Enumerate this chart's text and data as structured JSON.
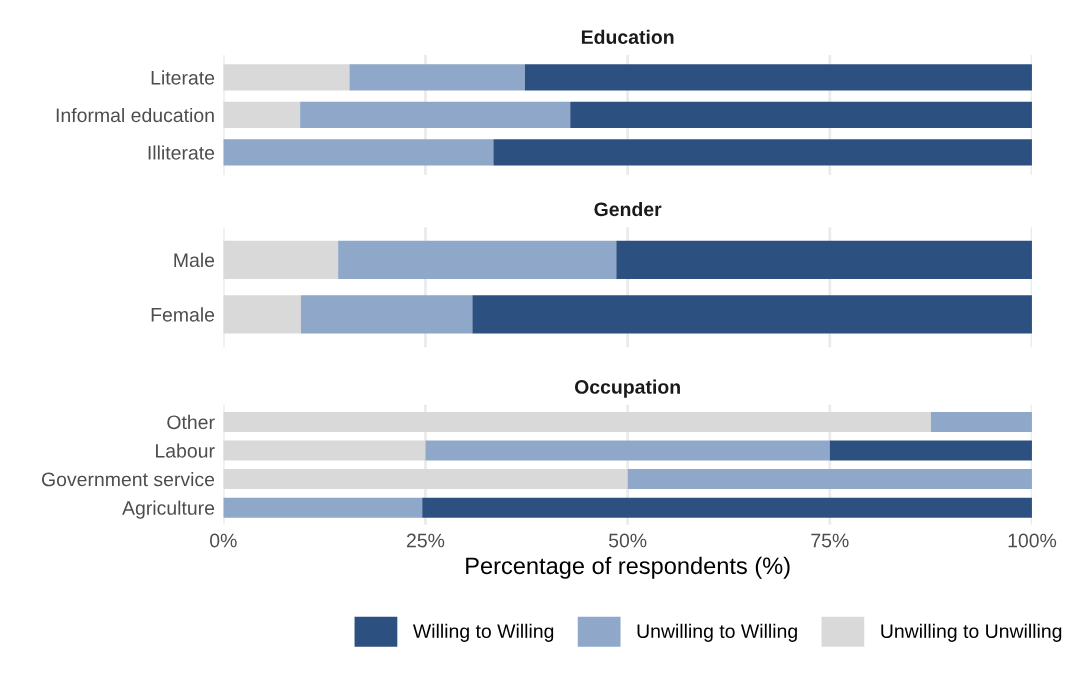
{
  "chart_data": [
    {
      "type": "bar",
      "orientation": "horizontal",
      "stacked": true,
      "title": "Education",
      "categories": [
        "Literate",
        "Informal education",
        "Illiterate"
      ],
      "series": [
        {
          "color": "#d9d9d9",
          "values": [
            15.6,
            9.5,
            0
          ]
        },
        {
          "color": "#8fa7c9",
          "values": [
            21.7,
            33.4,
            33.4
          ]
        },
        {
          "color": "#2c5080",
          "values": [
            62.7,
            57.1,
            66.6
          ]
        }
      ],
      "xlim": [
        0,
        100
      ],
      "xticks": [
        {
          "value": 0,
          "label": null
        },
        {
          "value": 25,
          "label": null
        },
        {
          "value": 50,
          "label": null
        },
        {
          "value": 75,
          "label": null
        },
        {
          "value": 100,
          "label": null
        }
      ],
      "tick_labels": "y",
      "grid": "x"
    },
    {
      "type": "bar",
      "orientation": "horizontal",
      "stacked": true,
      "title": "Gender",
      "categories": [
        "Male",
        "Female"
      ],
      "series": [
        {
          "color": "#d9d9d9",
          "values": [
            14.2,
            9.6
          ]
        },
        {
          "color": "#8fa7c9",
          "values": [
            34.4,
            21.2
          ]
        },
        {
          "color": "#2c5080",
          "values": [
            51.4,
            69.2
          ]
        }
      ],
      "xlim": [
        0,
        100
      ],
      "xticks": [
        {
          "value": 0,
          "label": null
        },
        {
          "value": 25,
          "label": null
        },
        {
          "value": 50,
          "label": null
        },
        {
          "value": 75,
          "label": null
        },
        {
          "value": 100,
          "label": null
        }
      ],
      "tick_labels": "y",
      "grid": "x"
    },
    {
      "type": "bar",
      "orientation": "horizontal",
      "stacked": true,
      "title": "Occupation",
      "categories": [
        "Other",
        "Labour",
        "Government service",
        "Agriculture"
      ],
      "series": [
        {
          "name": "Unwilling to Unwilling",
          "color": "#d9d9d9",
          "values": [
            87.5,
            25,
            50,
            0
          ]
        },
        {
          "name": "Unwilling to Willing",
          "color": "#8fa7c9",
          "values": [
            12.5,
            50,
            50,
            24.6
          ]
        },
        {
          "name": "Willing to Willing",
          "color": "#2c5080",
          "values": [
            0,
            25,
            0,
            75.4
          ]
        }
      ],
      "xlim": [
        0,
        100
      ],
      "xticks": [
        {
          "value": 0,
          "label": "0%"
        },
        {
          "value": 25,
          "label": "25%"
        },
        {
          "value": 50,
          "label": "50%"
        },
        {
          "value": 75,
          "label": "75%"
        },
        {
          "value": 100,
          "label": "100%"
        }
      ],
      "grid": "x",
      "xlabel": "Percentage of respondents (%)",
      "legend": "bottom"
    }
  ]
}
